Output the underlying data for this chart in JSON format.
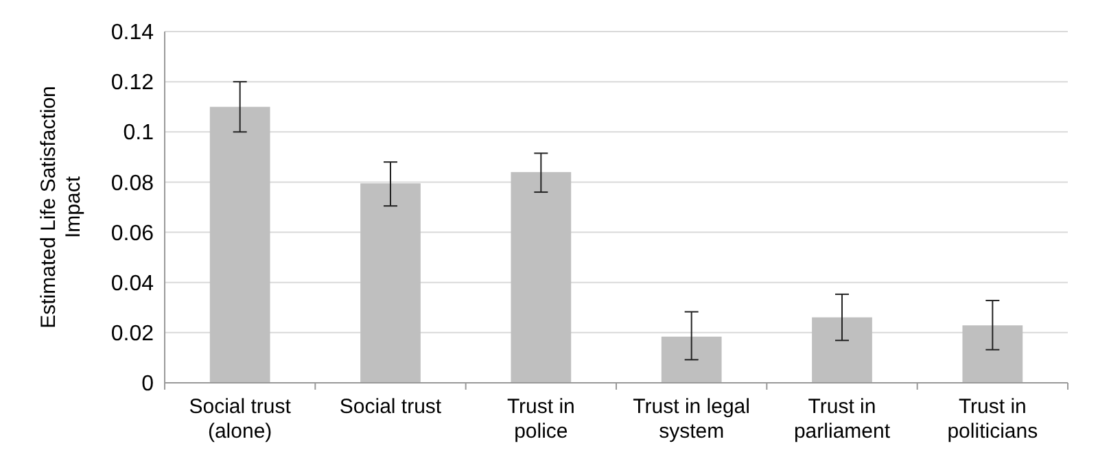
{
  "chart_data": {
    "type": "bar",
    "ylabel": "Estimated Life Satisfaction Impact",
    "categories": [
      "Social trust (alone)",
      "Social trust",
      "Trust in police",
      "Trust in legal system",
      "Trust in parliament",
      "Trust in politicians"
    ],
    "values": [
      0.11,
      0.0795,
      0.084,
      0.0184,
      0.0261,
      0.0229
    ],
    "errors": [
      [
        0.1,
        0.12
      ],
      [
        0.0705,
        0.088
      ],
      [
        0.076,
        0.0915
      ],
      [
        0.0092,
        0.0283
      ],
      [
        0.0169,
        0.0353
      ],
      [
        0.0132,
        0.0328
      ]
    ],
    "color": "#bfbfbf",
    "ylim": [
      0,
      0.14
    ],
    "yticks": [
      0,
      0.02,
      0.04,
      0.06,
      0.08,
      0.1,
      0.12,
      0.14
    ],
    "grid": "y"
  }
}
